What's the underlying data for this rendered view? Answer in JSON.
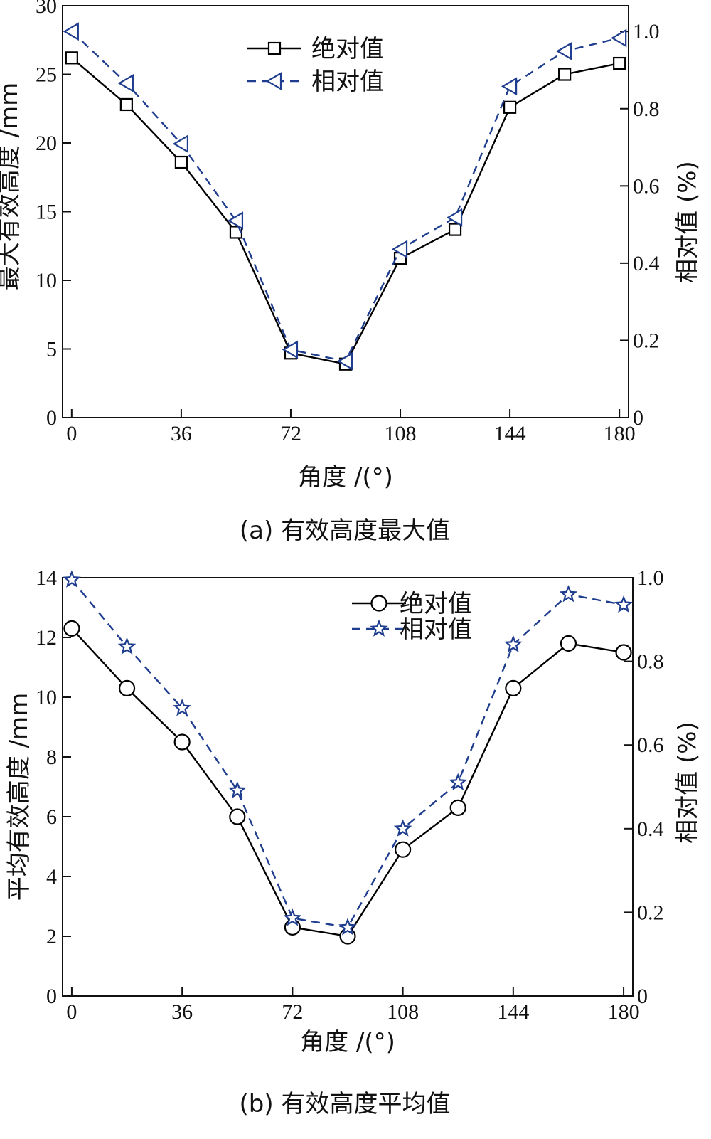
{
  "chart_data": [
    {
      "type": "line",
      "caption": "(a) 有效高度最大值",
      "xlabel": "角度 /(°)",
      "ylabel": "最大有效高度 /mm",
      "ylabel_right": "相对值 (%)",
      "x": [
        0,
        18,
        36,
        54,
        72,
        90,
        108,
        126,
        144,
        162,
        180
      ],
      "xticks": [
        0,
        36,
        72,
        108,
        144,
        180
      ],
      "xtick_labels": [
        "0",
        "36",
        "72",
        "108",
        "144",
        "180"
      ],
      "xlim": [
        -3,
        183
      ],
      "ylim": [
        0,
        30
      ],
      "yticks": [
        0,
        5,
        10,
        15,
        20,
        25,
        30
      ],
      "ytick_labels": [
        "0",
        "5",
        "10",
        "15",
        "20",
        "25",
        "30"
      ],
      "ylim_right": [
        0,
        1.0667
      ],
      "yticks_right": [
        0,
        0.2,
        0.4,
        0.6,
        0.8,
        1.0
      ],
      "ytick_labels_right": [
        "0",
        "0.2",
        "0.4",
        "0.6",
        "0.8",
        "1.0"
      ],
      "legend_position": "top-center",
      "series": [
        {
          "name": "绝对值",
          "axis": "left",
          "marker": "square",
          "line": "solid",
          "color": "#000000",
          "values": [
            26.2,
            22.8,
            18.6,
            13.5,
            4.7,
            3.9,
            11.6,
            13.7,
            22.6,
            25.0,
            25.8
          ]
        },
        {
          "name": "相对值",
          "axis": "right",
          "marker": "triangle-left",
          "line": "dashed",
          "color": "#1f3d8f",
          "values": [
            1.0,
            0.866,
            0.709,
            0.51,
            0.176,
            0.146,
            0.436,
            0.518,
            0.858,
            0.949,
            0.983
          ]
        }
      ]
    },
    {
      "type": "line",
      "caption": "(b) 有效高度平均值",
      "xlabel": "角度 /(°)",
      "ylabel": "平均有效高度 /mm",
      "ylabel_right": "相对值 (%)",
      "x": [
        0,
        18,
        36,
        54,
        72,
        90,
        108,
        126,
        144,
        162,
        180
      ],
      "xticks": [
        0,
        36,
        72,
        108,
        144,
        180
      ],
      "xtick_labels": [
        "0",
        "36",
        "72",
        "108",
        "144",
        "180"
      ],
      "xlim": [
        -3,
        183
      ],
      "ylim": [
        0,
        14
      ],
      "yticks": [
        0,
        2,
        4,
        6,
        8,
        10,
        12,
        14
      ],
      "ytick_labels": [
        "0",
        "2",
        "4",
        "6",
        "8",
        "10",
        "12",
        "14"
      ],
      "ylim_right": [
        0,
        1.0
      ],
      "yticks_right": [
        0,
        0.2,
        0.4,
        0.6,
        0.8,
        1.0
      ],
      "ytick_labels_right": [
        "0",
        "0.2",
        "0.4",
        "0.6",
        "0.8",
        "1.0"
      ],
      "legend_position": "top-center",
      "series": [
        {
          "name": "绝对值",
          "axis": "left",
          "marker": "circle",
          "line": "solid",
          "color": "#000000",
          "values": [
            12.3,
            10.3,
            8.5,
            6.0,
            2.3,
            2.0,
            4.9,
            6.3,
            10.3,
            11.8,
            11.5
          ]
        },
        {
          "name": "相对值",
          "axis": "right",
          "marker": "star",
          "line": "dashed",
          "color": "#1f3d8f",
          "values": [
            0.995,
            0.835,
            0.688,
            0.491,
            0.186,
            0.164,
            0.4,
            0.51,
            0.84,
            0.96,
            0.935
          ]
        }
      ]
    }
  ]
}
